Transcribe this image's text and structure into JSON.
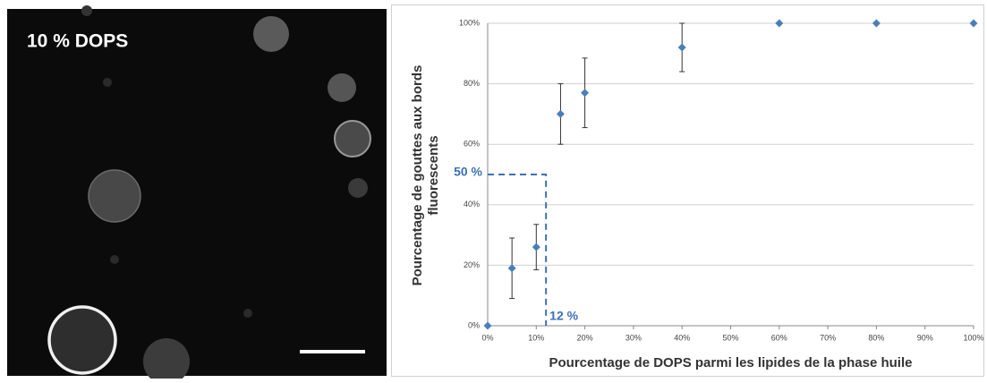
{
  "image": {
    "label": "10 % DOPS"
  },
  "chart_data": {
    "type": "scatter",
    "xlabel": "Pourcentage de DOPS parmi les lipides de la phase huile",
    "ylabel": [
      "Pourcentage de gouttes aux bords",
      "fluorescents"
    ],
    "x": [
      0,
      5,
      10,
      15,
      20,
      40,
      60,
      80,
      100
    ],
    "values": [
      0,
      19,
      26,
      70,
      77,
      92,
      100,
      100,
      100
    ],
    "errors": [
      null,
      10,
      7.5,
      10,
      11.5,
      8,
      null,
      null,
      null
    ],
    "color": "#4a7ebb",
    "xlim": [
      0,
      100
    ],
    "xticks": [
      {
        "value": 0,
        "label": "0%"
      },
      {
        "value": 10,
        "label": "10%"
      },
      {
        "value": 20,
        "label": "20%"
      },
      {
        "value": 30,
        "label": "30%"
      },
      {
        "value": 40,
        "label": "40%"
      },
      {
        "value": 50,
        "label": "50%"
      },
      {
        "value": 60,
        "label": "60%"
      },
      {
        "value": 70,
        "label": "70%"
      },
      {
        "value": 80,
        "label": "80%"
      },
      {
        "value": 90,
        "label": "90%"
      },
      {
        "value": 100,
        "label": "100%"
      }
    ],
    "ylim": [
      0,
      100
    ],
    "yticks": [
      {
        "value": 0,
        "label": "0%"
      },
      {
        "value": 20,
        "label": "20%"
      },
      {
        "value": 40,
        "label": "40%"
      },
      {
        "value": 60,
        "label": "60%"
      },
      {
        "value": 80,
        "label": "80%"
      },
      {
        "value": 100,
        "label": "100%"
      }
    ],
    "grid": true,
    "threshold": {
      "x": 12,
      "y": 50,
      "x_label": "12 %",
      "y_label": "50 %",
      "color": "#3d70b8"
    }
  }
}
